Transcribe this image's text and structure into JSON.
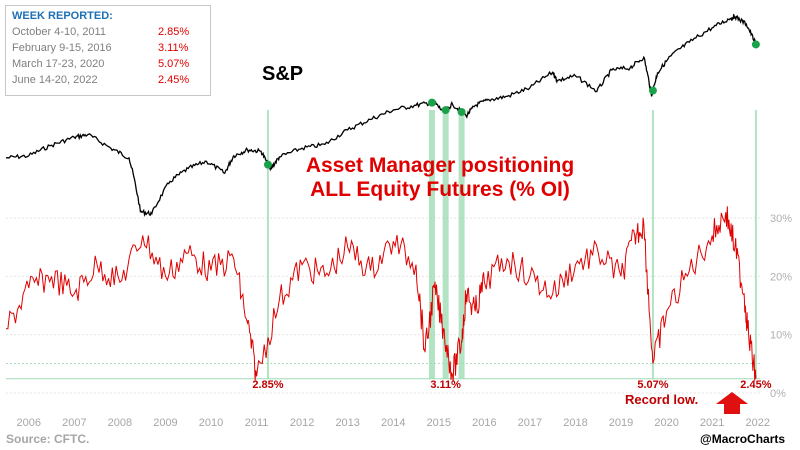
{
  "legend": {
    "title": "WEEK REPORTED:",
    "rows": [
      {
        "label": "October 4-10, 2011",
        "value": "2.85%"
      },
      {
        "label": "February 9-15, 2016",
        "value": "3.11%"
      },
      {
        "label": "March 17-23, 2020",
        "value": "5.07%"
      },
      {
        "label": "June 14-20, 2022",
        "value": "2.45%"
      }
    ]
  },
  "chart_data": {
    "type": "line",
    "title": "Asset Manager positioning\nALL Equity Futures (% OI)",
    "sp_label": "S&P",
    "source": "Source: CFTC.",
    "handle": "@MacroCharts",
    "record_label": "Record low.",
    "x_ticks": [
      "2006",
      "2007",
      "2008",
      "2009",
      "2010",
      "2011",
      "2012",
      "2013",
      "2014",
      "2015",
      "2016",
      "2017",
      "2018",
      "2019",
      "2020",
      "2021",
      "2022"
    ],
    "y_ticks": [
      "0%",
      "10%",
      "20%",
      "30%"
    ],
    "ylim": [
      0,
      30
    ],
    "grid": true,
    "colors": {
      "positioning": "#e00000",
      "sp": "#000000",
      "markers": "#1aa24a",
      "highlight": "#9fdcb4",
      "title": "#e00000",
      "legend_title": "#1f6fb5"
    },
    "series": [
      {
        "name": "Asset Manager positioning",
        "x": [
          2006.0,
          2006.5,
          2007.0,
          2007.5,
          2008.0,
          2008.5,
          2009.0,
          2009.5,
          2010.0,
          2010.5,
          2011.0,
          2011.3,
          2011.5,
          2012.0,
          2012.5,
          2013.0,
          2013.5,
          2014.0,
          2014.5,
          2015.0,
          2015.2,
          2015.4,
          2015.6,
          2015.8,
          2016.0,
          2016.1,
          2016.3,
          2016.5,
          2017.0,
          2017.5,
          2018.0,
          2018.5,
          2019.0,
          2019.5,
          2019.8,
          2020.0,
          2020.2,
          2020.5,
          2021.0,
          2021.5,
          2021.8,
          2022.0,
          2022.2,
          2022.3,
          2022.46
        ],
        "y": [
          11,
          18,
          20,
          17,
          22,
          19,
          27,
          20,
          24,
          21,
          23,
          12,
          2.85,
          16,
          22,
          20,
          25,
          21,
          26,
          22,
          7,
          18,
          11,
          3.11,
          9,
          17,
          14,
          19,
          23,
          20,
          17,
          22,
          24,
          20,
          27,
          29,
          5.07,
          14,
          21,
          27,
          31,
          25,
          17,
          10,
          2.45
        ]
      },
      {
        "name": "S&P",
        "x": [
          2006.0,
          2006.5,
          2007.0,
          2007.5,
          2007.8,
          2008.3,
          2008.7,
          2008.95,
          2009.2,
          2009.6,
          2010.0,
          2010.4,
          2010.8,
          2011.0,
          2011.3,
          2011.6,
          2011.8,
          2012.0,
          2012.5,
          2013.0,
          2013.5,
          2014.0,
          2014.5,
          2015.0,
          2015.4,
          2015.6,
          2015.8,
          2016.1,
          2016.3,
          2016.6,
          2017.0,
          2017.5,
          2018.0,
          2018.1,
          2018.5,
          2018.97,
          2019.3,
          2019.7,
          2020.0,
          2020.17,
          2020.3,
          2020.6,
          2021.0,
          2021.5,
          2021.9,
          2022.0,
          2022.25,
          2022.46
        ],
        "y": [
          1250,
          1275,
          1410,
          1520,
          1560,
          1370,
          1250,
          750,
          735,
          1000,
          1130,
          1210,
          1080,
          1275,
          1350,
          1330,
          1120,
          1260,
          1370,
          1420,
          1630,
          1800,
          1970,
          2060,
          2120,
          1930,
          2080,
          1860,
          2060,
          2170,
          2240,
          2430,
          2820,
          2600,
          2720,
          2350,
          2880,
          2940,
          3250,
          2240,
          2800,
          3300,
          3750,
          4300,
          4700,
          4790,
          4450,
          3670
        ]
      }
    ],
    "markers": [
      {
        "x": 2011.75,
        "value_label": "2.85%"
      },
      {
        "x": 2015.35,
        "value_label": ""
      },
      {
        "x": 2015.65,
        "value_label": "3.11%"
      },
      {
        "x": 2016.0,
        "value_label": ""
      },
      {
        "x": 2020.2,
        "value_label": "5.07%"
      },
      {
        "x": 2022.46,
        "value_label": "2.45%"
      }
    ]
  }
}
